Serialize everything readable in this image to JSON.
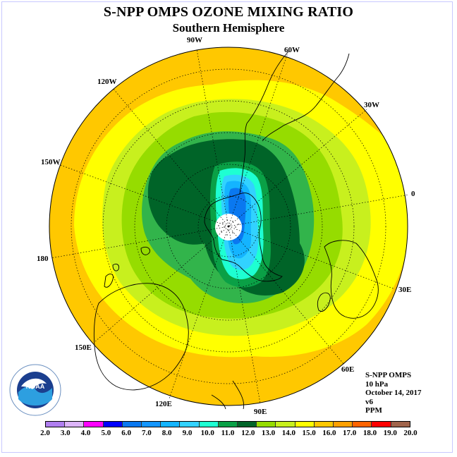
{
  "header": {
    "title": "S-NPP OMPS OZONE MIXING RATIO",
    "subtitle": "Southern Hemisphere"
  },
  "map": {
    "longitude_labels": [
      "90W",
      "60W",
      "120W",
      "30W",
      "150W",
      "0",
      "180",
      "30E",
      "150E",
      "60E",
      "120E",
      "90E"
    ]
  },
  "info": {
    "instrument": "S-NPP OMPS",
    "level": "10 hPa",
    "date": "October 14, 2017",
    "version": "v6",
    "units": "PPM"
  },
  "legend": {
    "ticks": [
      "2.0",
      "3.0",
      "4.0",
      "5.0",
      "6.0",
      "7.0",
      "8.0",
      "9.0",
      "10.0",
      "11.0",
      "12.0",
      "13.0",
      "14.0",
      "15.0",
      "16.0",
      "17.0",
      "18.0",
      "19.0",
      "20.0"
    ],
    "colors": [
      "#b07ff0",
      "#dcb4f8",
      "#ff00ff",
      "#0000ff",
      "#0a78f0",
      "#1496ff",
      "#14b4ff",
      "#32d2ff",
      "#1effd2",
      "#0aa046",
      "#006428",
      "#96dc00",
      "#c8f01e",
      "#ffff00",
      "#ffc800",
      "#ffa000",
      "#ff6400",
      "#ff0000",
      "#a0644b"
    ]
  },
  "logo": {
    "text": "NOAA"
  }
}
